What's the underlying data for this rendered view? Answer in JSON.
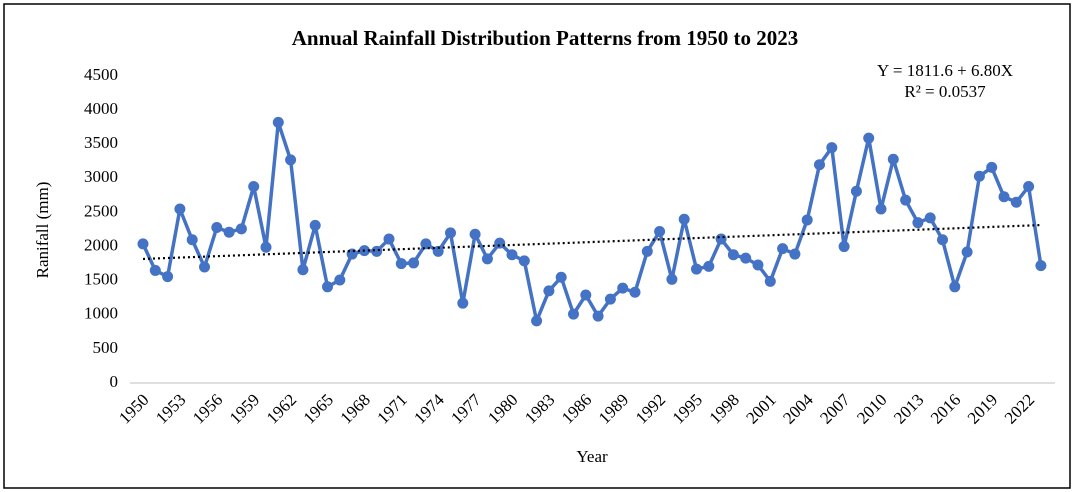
{
  "chart_data": {
    "type": "line",
    "title": "Annual Rainfall Distribution Patterns from 1950 to 2023",
    "x_label": "Year",
    "y_label": "Ranifall (mm)",
    "categories": [
      "1950",
      null,
      null,
      "1953",
      null,
      null,
      "1956",
      null,
      null,
      "1959",
      null,
      null,
      "1962",
      null,
      null,
      "1965",
      null,
      null,
      "1968",
      null,
      null,
      "1971",
      null,
      null,
      "1974",
      null,
      null,
      "1977",
      null,
      null,
      "1980",
      null,
      null,
      "1983",
      null,
      null,
      "1986",
      null,
      null,
      "1989",
      null,
      null,
      "1992",
      null,
      null,
      "1995",
      null,
      null,
      "1998",
      null,
      null,
      "2001",
      null,
      null,
      "2004",
      null,
      null,
      "2007",
      null,
      null,
      "2010",
      null,
      null,
      "2013",
      null,
      null,
      "2016",
      null,
      null,
      "2019",
      null,
      null,
      "2022",
      null
    ],
    "values": [
      2040,
      1650,
      1560,
      2550,
      2100,
      1700,
      2280,
      2210,
      2260,
      2880,
      1990,
      3820,
      3270,
      1660,
      2310,
      1410,
      1510,
      1890,
      1940,
      1930,
      2110,
      1750,
      1760,
      2040,
      1930,
      2200,
      1170,
      2180,
      1820,
      2050,
      1880,
      1790,
      910,
      1350,
      1550,
      1010,
      1290,
      980,
      1230,
      1390,
      1330,
      1930,
      2220,
      1520,
      2400,
      1670,
      1710,
      2110,
      1880,
      1830,
      1730,
      1490,
      1970,
      1890,
      2390,
      3200,
      3450,
      2000,
      2810,
      3590,
      2550,
      3280,
      2680,
      2350,
      2420,
      2100,
      1410,
      1920,
      3030,
      3160,
      2730,
      2650,
      2880,
      1720
    ],
    "color": "#4472c4",
    "ylim": [
      0,
      4500
    ],
    "yticks": [
      0,
      500,
      1000,
      1500,
      2000,
      2500,
      3000,
      3500,
      4000,
      4500
    ],
    "grid": false,
    "trendline": {
      "intercept": 1811.6,
      "slope": 6.8,
      "label": "Y = 1811.6 + 6.80X",
      "r2_label": "R² = 0.0537",
      "color": "#000000"
    }
  }
}
